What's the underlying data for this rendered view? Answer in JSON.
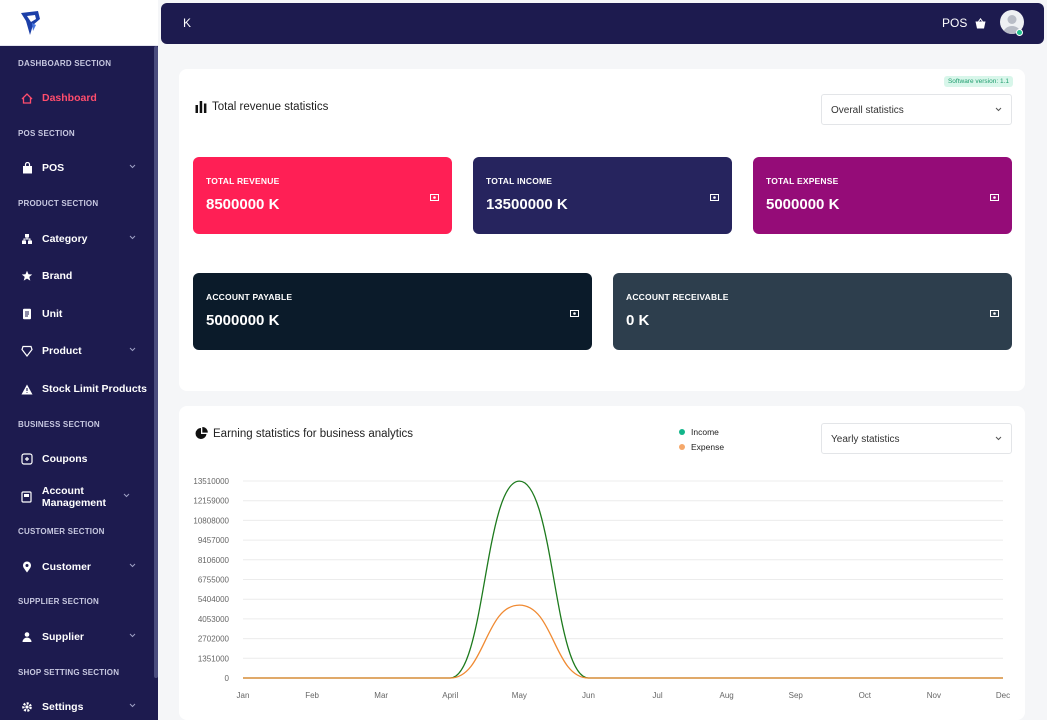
{
  "sidebar": {
    "sections": [
      {
        "label": "DASHBOARD SECTION"
      },
      {
        "label": "POS SECTION"
      },
      {
        "label": "PRODUCT SECTION"
      },
      {
        "label": "BUSINESS SECTION"
      },
      {
        "label": "CUSTOMER SECTION"
      },
      {
        "label": "SUPPLIER SECTION"
      },
      {
        "label": "SHOP SETTING SECTION"
      }
    ],
    "items": [
      {
        "label": "Dashboard",
        "icon": "home-icon",
        "active": true
      },
      {
        "label": "POS",
        "icon": "bag-icon"
      },
      {
        "label": "Category",
        "icon": "category-icon"
      },
      {
        "label": "Brand",
        "icon": "star-icon"
      },
      {
        "label": "Unit",
        "icon": "document-icon"
      },
      {
        "label": "Product",
        "icon": "diamond-icon"
      },
      {
        "label": "Stock Limit Products",
        "icon": "warning-icon"
      },
      {
        "label": "Coupons",
        "icon": "coupon-icon"
      },
      {
        "label": "Account Management",
        "icon": "account-icon"
      },
      {
        "label": "Customer",
        "icon": "location-icon"
      },
      {
        "label": "Supplier",
        "icon": "supplier-icon"
      },
      {
        "label": "Settings",
        "icon": "gear-icon"
      }
    ]
  },
  "topbar": {
    "currency": "K",
    "pos_label": "POS"
  },
  "revenue": {
    "version": "Software version: 1.1",
    "title": "Total revenue statistics",
    "filter": "Overall statistics",
    "stats": [
      {
        "label": "TOTAL REVENUE",
        "value": "8500000 K",
        "color": "#ff1f55"
      },
      {
        "label": "TOTAL INCOME",
        "value": "13500000 K",
        "color": "#26245e"
      },
      {
        "label": "TOTAL EXPENSE",
        "value": "5000000 K",
        "color": "#950c78"
      },
      {
        "label": "ACCOUNT PAYABLE",
        "value": "5000000 K",
        "color": "#0b1b2a"
      },
      {
        "label": "ACCOUNT RECEIVABLE",
        "value": "0 K",
        "color": "#2d3e4d"
      }
    ]
  },
  "earning": {
    "title": "Earning statistics for business analytics",
    "filter": "Yearly statistics",
    "legend": [
      {
        "label": "Income",
        "color": "#12b58a"
      },
      {
        "label": "Expense",
        "color": "#f5a86a"
      }
    ]
  },
  "chart_data": {
    "type": "line",
    "categories": [
      "Jan",
      "Feb",
      "Mar",
      "April",
      "May",
      "Jun",
      "Jul",
      "Aug",
      "Sep",
      "Oct",
      "Nov",
      "Dec"
    ],
    "series": [
      {
        "name": "Income",
        "color": "#1d7a1d",
        "values": [
          0,
          0,
          0,
          0,
          13500000,
          0,
          0,
          0,
          0,
          0,
          0,
          0
        ]
      },
      {
        "name": "Expense",
        "color": "#f08a32",
        "values": [
          0,
          0,
          0,
          0,
          5000000,
          0,
          0,
          0,
          0,
          0,
          0,
          0
        ]
      }
    ],
    "yticks": [
      "0",
      "1351000",
      "2702000",
      "4053000",
      "5404000",
      "6755000",
      "8106000",
      "9457000",
      "10808000",
      "12159000",
      "13510000"
    ],
    "ylim": [
      0,
      13510000
    ],
    "grid": true
  }
}
